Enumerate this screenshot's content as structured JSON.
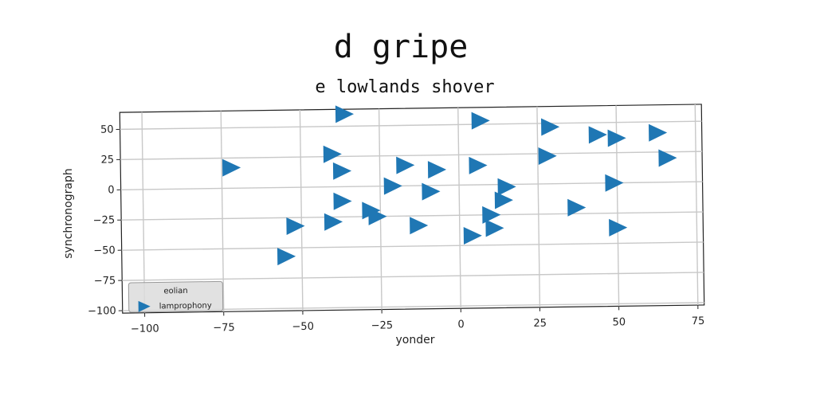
{
  "chart_data": {
    "type": "scatter",
    "title": "d gripe",
    "subtitle": "e lowlands shover",
    "xlabel": "yonder",
    "ylabel": "synchronograph",
    "xlim": [
      -107,
      77
    ],
    "ylim": [
      -102,
      64
    ],
    "xticks": [
      -100,
      -75,
      -50,
      -25,
      0,
      25,
      50,
      75
    ],
    "yticks": [
      50,
      25,
      0,
      -25,
      -50,
      -75,
      -100
    ],
    "xtick_labels": [
      "−100",
      "−75",
      "−50",
      "−25",
      "0",
      "25",
      "50",
      "75"
    ],
    "ytick_labels": [
      "50",
      "25",
      "0",
      "−25",
      "−50",
      "−75",
      "−100"
    ],
    "grid": true,
    "legend": {
      "placement": "lower-left",
      "title": "eolian",
      "entries": [
        "lamprophony"
      ]
    },
    "marker": "triangle-right",
    "color": "#1f77b4",
    "series": [
      {
        "name": "lamprophony",
        "points": [
          {
            "x": -72,
            "y": 17
          },
          {
            "x": -36,
            "y": 60
          },
          {
            "x": -40,
            "y": 27
          },
          {
            "x": -37,
            "y": 13
          },
          {
            "x": -37,
            "y": -12
          },
          {
            "x": -40,
            "y": -29
          },
          {
            "x": -52,
            "y": -32
          },
          {
            "x": -55,
            "y": -57
          },
          {
            "x": -28,
            "y": -20
          },
          {
            "x": -26,
            "y": -25
          },
          {
            "x": -17,
            "y": 17
          },
          {
            "x": -21,
            "y": 0
          },
          {
            "x": -7,
            "y": 13
          },
          {
            "x": -9,
            "y": -5
          },
          {
            "x": -13,
            "y": -33
          },
          {
            "x": 7,
            "y": 53
          },
          {
            "x": 6,
            "y": 16
          },
          {
            "x": 15,
            "y": -2
          },
          {
            "x": 14,
            "y": -13
          },
          {
            "x": 10,
            "y": -25
          },
          {
            "x": 11,
            "y": -36
          },
          {
            "x": 4,
            "y": -42
          },
          {
            "x": 29,
            "y": 47
          },
          {
            "x": 28,
            "y": 23
          },
          {
            "x": 37,
            "y": -20
          },
          {
            "x": 44,
            "y": 40
          },
          {
            "x": 50,
            "y": 37
          },
          {
            "x": 49,
            "y": 0
          },
          {
            "x": 50,
            "y": -37
          },
          {
            "x": 63,
            "y": 41
          },
          {
            "x": 66,
            "y": 20
          }
        ]
      }
    ]
  }
}
